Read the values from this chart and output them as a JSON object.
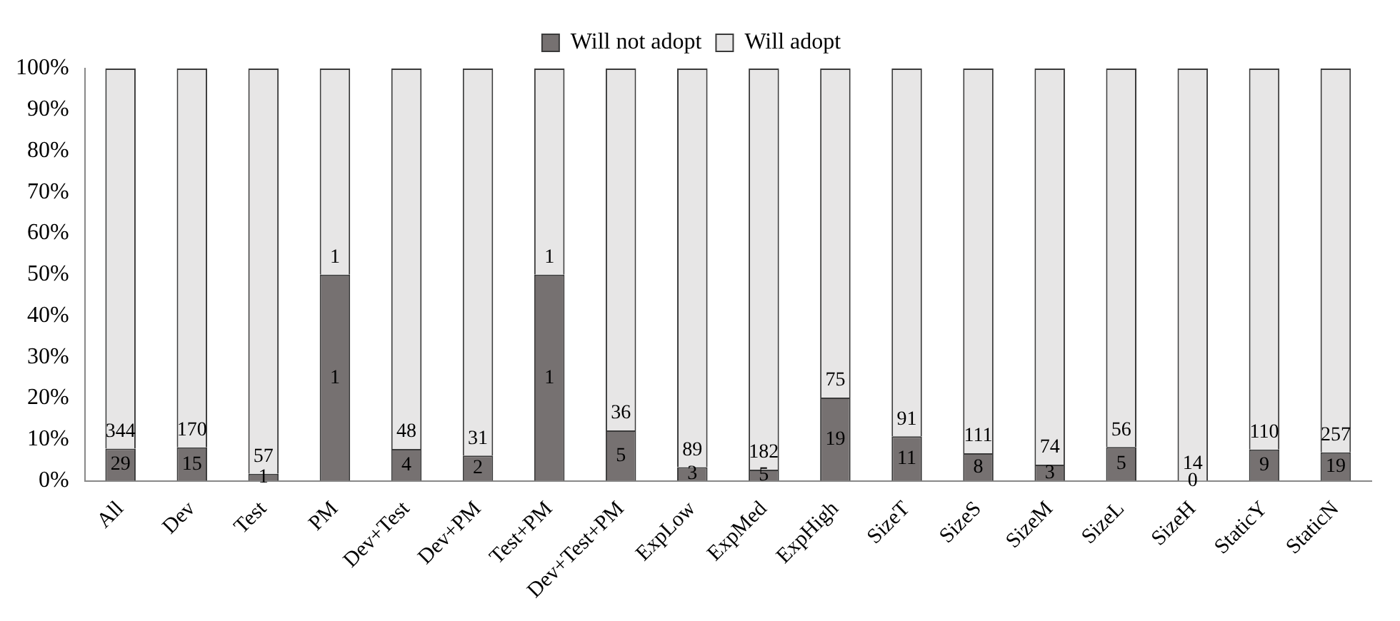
{
  "chart_data": {
    "type": "bar",
    "stacked": true,
    "legend": "top",
    "grid": false,
    "categories": [
      "All",
      "Dev",
      "Test",
      "PM",
      "Dev+Test",
      "Dev+PM",
      "Test+PM",
      "Dev+Test+PM",
      "ExpLow",
      "ExpMed",
      "ExpHigh",
      "SizeT",
      "SizeS",
      "SizeM",
      "SizeL",
      "SizeH",
      "StaticY",
      "StaticN"
    ],
    "ylim": [
      0,
      100
    ],
    "yticks": [
      {
        "value": 0,
        "label": "0%"
      },
      {
        "value": 10,
        "label": "10%"
      },
      {
        "value": 20,
        "label": "20%"
      },
      {
        "value": 30,
        "label": "30%"
      },
      {
        "value": 40,
        "label": "40%"
      },
      {
        "value": 50,
        "label": "50%"
      },
      {
        "value": 60,
        "label": "60%"
      },
      {
        "value": 70,
        "label": "70%"
      },
      {
        "value": 80,
        "label": "80%"
      },
      {
        "value": 90,
        "label": "90%"
      },
      {
        "value": 100,
        "label": "100%"
      }
    ],
    "series": [
      {
        "name": "Will not adopt",
        "color": "#767171",
        "values": [
          7.8,
          8.1,
          1.7,
          50,
          7.7,
          6.1,
          50,
          12.2,
          3.3,
          2.7,
          20.2,
          10.8,
          6.7,
          3.9,
          8.2,
          0,
          7.6,
          6.9
        ]
      },
      {
        "name": "Will adopt",
        "color": "#e7e6e6",
        "values": [
          92.2,
          91.9,
          98.3,
          50,
          92.3,
          93.9,
          50,
          87.8,
          96.7,
          97.3,
          79.8,
          89.2,
          93.3,
          96.1,
          91.8,
          100,
          92.4,
          93.1
        ]
      }
    ],
    "annotations": [
      "29",
      "15",
      "1",
      "1",
      "4",
      "2",
      "1",
      "5",
      "3",
      "5",
      "19",
      "11",
      "8",
      "3",
      "5",
      "0",
      "9",
      "19",
      "344",
      "170",
      "57",
      "1",
      "48",
      "31",
      "1",
      "36",
      "89",
      "182",
      "75",
      "91",
      "111",
      "74",
      "56",
      "14",
      "110",
      "257"
    ]
  }
}
